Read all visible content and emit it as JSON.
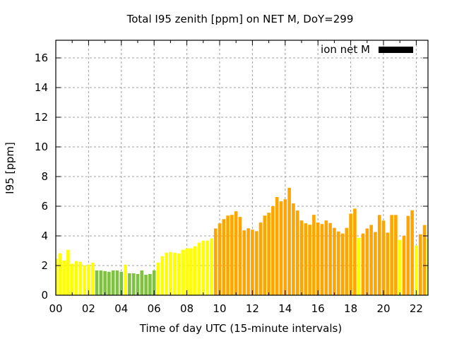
{
  "chart_data": {
    "type": "bar",
    "title": "Total I95 zenith [ppm] on NET M, DoY=299",
    "xlabel": "Time of day UTC (15-minute intervals)",
    "ylabel": "I95 [ppm]",
    "xlim": [
      0,
      22.75
    ],
    "ylim": [
      0,
      17.2
    ],
    "grid": true,
    "legend": {
      "placement": "top-right",
      "entries": [
        {
          "label": "ion net M",
          "color": "#000000"
        }
      ]
    },
    "x_ticks": [
      {
        "value": 0,
        "label": "00"
      },
      {
        "value": 2,
        "label": "02"
      },
      {
        "value": 4,
        "label": "04"
      },
      {
        "value": 6,
        "label": "06"
      },
      {
        "value": 8,
        "label": "08"
      },
      {
        "value": 10,
        "label": "10"
      },
      {
        "value": 12,
        "label": "12"
      },
      {
        "value": 14,
        "label": "14"
      },
      {
        "value": 16,
        "label": "16"
      },
      {
        "value": 18,
        "label": "18"
      },
      {
        "value": 20,
        "label": "20"
      },
      {
        "value": 22,
        "label": "22"
      }
    ],
    "y_ticks": [
      {
        "value": 0,
        "label": "0"
      },
      {
        "value": 2,
        "label": "2"
      },
      {
        "value": 4,
        "label": "4"
      },
      {
        "value": 6,
        "label": "6"
      },
      {
        "value": 8,
        "label": "8"
      },
      {
        "value": 10,
        "label": "10"
      },
      {
        "value": 12,
        "label": "12"
      },
      {
        "value": 14,
        "label": "14"
      },
      {
        "value": 16,
        "label": "16"
      }
    ],
    "interval_hours": 0.25,
    "colors": {
      "low": "#7fc241",
      "medium": "#ffff00",
      "high": "#ffa500"
    },
    "values": [
      2.45,
      2.82,
      2.34,
      3.06,
      2.12,
      2.3,
      2.25,
      2.02,
      2.07,
      2.2,
      1.67,
      1.67,
      1.63,
      1.58,
      1.67,
      1.67,
      1.58,
      2.06,
      1.48,
      1.48,
      1.43,
      1.67,
      1.38,
      1.43,
      1.67,
      2.2,
      2.63,
      2.87,
      2.92,
      2.87,
      2.82,
      3.06,
      3.16,
      3.16,
      3.3,
      3.54,
      3.68,
      3.68,
      3.83,
      4.5,
      4.84,
      5.13,
      5.37,
      5.42,
      5.66,
      5.28,
      4.37,
      4.51,
      4.42,
      4.32,
      4.9,
      5.37,
      5.56,
      6.0,
      6.62,
      6.33,
      6.47,
      7.24,
      6.19,
      5.71,
      5.04,
      4.85,
      4.75,
      5.42,
      4.9,
      4.8,
      5.04,
      4.87,
      4.54,
      4.3,
      4.16,
      4.54,
      5.5,
      5.84,
      3.87,
      4.16,
      4.5,
      4.74,
      4.26,
      5.41,
      5.03,
      4.22,
      5.41,
      5.41,
      3.73,
      4.01,
      5.35,
      5.73,
      3.35,
      4.11,
      4.73,
      3.82
    ],
    "categories_color": [
      "medium",
      "medium",
      "medium",
      "medium",
      "medium",
      "medium",
      "medium",
      "medium",
      "medium",
      "medium",
      "low",
      "low",
      "low",
      "low",
      "low",
      "low",
      "low",
      "medium",
      "low",
      "low",
      "low",
      "low",
      "low",
      "low",
      "low",
      "medium",
      "medium",
      "medium",
      "medium",
      "medium",
      "medium",
      "medium",
      "medium",
      "medium",
      "medium",
      "medium",
      "medium",
      "medium",
      "medium",
      "high",
      "high",
      "high",
      "high",
      "high",
      "high",
      "high",
      "high",
      "high",
      "high",
      "high",
      "high",
      "high",
      "high",
      "high",
      "high",
      "high",
      "high",
      "high",
      "high",
      "high",
      "high",
      "high",
      "high",
      "high",
      "high",
      "high",
      "high",
      "high",
      "high",
      "high",
      "high",
      "high",
      "high",
      "high",
      "medium",
      "high",
      "high",
      "high",
      "high",
      "high",
      "high",
      "high",
      "high",
      "high",
      "medium",
      "high",
      "high",
      "high",
      "medium",
      "high",
      "high",
      "medium"
    ]
  }
}
